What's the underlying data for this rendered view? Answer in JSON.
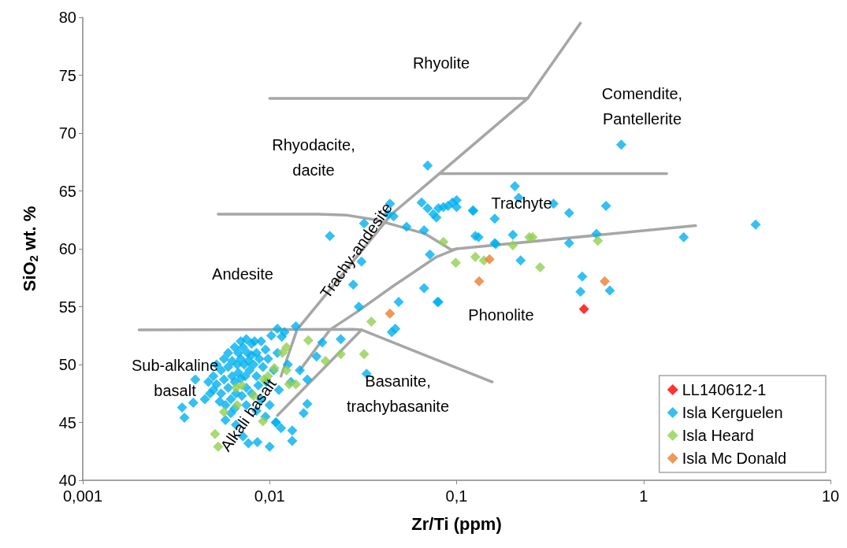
{
  "chart_data": {
    "type": "scatter",
    "xlabel": "Zr/Ti (ppm)",
    "ylabel": "SiO$_{2}$ wt. %",
    "log": "x",
    "marker": "diamond",
    "grid": false,
    "legend": "bottom right",
    "xlim": [
      0.001,
      10
    ],
    "xticks": [
      {
        "value": 0.001,
        "label": "0,001"
      },
      {
        "value": 0.01,
        "label": "0,01"
      },
      {
        "value": 0.1,
        "label": "0,1"
      },
      1,
      10
    ],
    "ylim": [
      40,
      80
    ],
    "yticks": [
      40,
      45,
      50,
      55,
      60,
      65,
      70,
      75,
      80
    ],
    "series": [
      {
        "name": "LL140612-1",
        "color": "#ff0000",
        "x": [
          0.48
        ],
        "values": [
          54.8
        ]
      },
      {
        "name": "Isla Kerguelen",
        "color": "#00b0f0",
        "x": [
          0.0045,
          0.0047,
          0.0048,
          0.005,
          0.005,
          0.0052,
          0.0052,
          0.0054,
          0.0055,
          0.0055,
          0.0057,
          0.0057,
          0.0058,
          0.006,
          0.006,
          0.006,
          0.0062,
          0.0063,
          0.0063,
          0.0065,
          0.0065,
          0.0066,
          0.0067,
          0.0068,
          0.0068,
          0.007,
          0.007,
          0.007,
          0.0071,
          0.0072,
          0.0073,
          0.0074,
          0.0075,
          0.0075,
          0.0076,
          0.0077,
          0.0078,
          0.008,
          0.008,
          0.008,
          0.0082,
          0.0083,
          0.0085,
          0.0085,
          0.0087,
          0.0088,
          0.009,
          0.009,
          0.0092,
          0.0095,
          0.0096,
          0.0098,
          0.01,
          0.0102,
          0.0105,
          0.0108,
          0.011,
          0.0112,
          0.012,
          0.0125,
          0.013,
          0.0115,
          0.0095,
          0.0085,
          0.0075,
          0.0062,
          0.0058,
          0.0066,
          0.0072,
          0.0065,
          0.0034,
          0.0035,
          0.004,
          0.0039,
          0.0077,
          0.01,
          0.0086,
          0.0132,
          0.0132,
          0.0152,
          0.0159,
          0.0108,
          0.0191,
          0.024,
          0.0178,
          0.0145,
          0.0159,
          0.011,
          0.0138,
          0.0116,
          0.021,
          0.032,
          0.044,
          0.043,
          0.046,
          0.054,
          0.067,
          0.072,
          0.067,
          0.08,
          0.049,
          0.03,
          0.047,
          0.045,
          0.031,
          0.028,
          0.033,
          0.065,
          0.07,
          0.075,
          0.08,
          0.085,
          0.09,
          0.095,
          0.1,
          0.1,
          0.078,
          0.123,
          0.126,
          0.16,
          0.76,
          3.98,
          1.64,
          0.205,
          0.215,
          0.122,
          0.16,
          0.4,
          0.63,
          0.131,
          0.162,
          0.2,
          0.4,
          0.56,
          0.22,
          0.47,
          0.46,
          0.66,
          0.079,
          0.33,
          0.07
        ],
        "values": [
          47,
          48.5,
          47.5,
          49,
          47.8,
          50,
          48.3,
          46.8,
          49.5,
          47.5,
          50.5,
          48.7,
          46.5,
          51,
          49.8,
          48,
          47,
          50.3,
          49,
          51.5,
          48.5,
          47.5,
          50,
          51,
          49.3,
          52,
          50.5,
          48.8,
          47.3,
          51.5,
          50,
          49,
          52.2,
          48,
          51,
          50.3,
          49.5,
          51.8,
          50.8,
          47.5,
          50,
          52,
          49,
          51,
          48.2,
          50.5,
          52,
          47,
          49.8,
          51.3,
          48.5,
          50.5,
          46.5,
          52.5,
          49.5,
          45,
          51,
          47.8,
          52.8,
          50,
          48.5,
          44.5,
          45.5,
          46,
          46.5,
          45.8,
          45.2,
          44.8,
          43.8,
          46.2,
          46.3,
          45.4,
          48.7,
          46.7,
          43.2,
          42.9,
          43.3,
          44.3,
          43.4,
          45.8,
          46.6,
          45,
          51.9,
          52.2,
          50.7,
          49.5,
          48.7,
          53.1,
          53.3,
          52.4,
          61.1,
          62.2,
          63.9,
          63,
          62.8,
          61.9,
          61.6,
          59.5,
          56.6,
          55.4,
          55.4,
          55,
          53.1,
          52.8,
          58.9,
          56.9,
          49.2,
          64,
          63.5,
          63,
          63.5,
          63.6,
          63.7,
          64,
          64.2,
          63.6,
          62.7,
          63.3,
          61.1,
          60.5,
          69,
          62.1,
          61,
          65.4,
          64.4,
          63.3,
          62.6,
          63.1,
          63.7,
          61,
          60.4,
          61.2,
          60.5,
          61.3,
          59,
          57.6,
          56.3,
          56.4,
          55.4,
          63.9,
          67.2
        ]
      },
      {
        "name": "Isla Heard",
        "color": "#92d050",
        "x": [
          0.085,
          0.099,
          0.126,
          0.14,
          0.2,
          0.245,
          0.255,
          0.28,
          0.57,
          0.035,
          0.032,
          0.0051,
          0.0053,
          0.0057,
          0.0066,
          0.0071,
          0.0067,
          0.0082,
          0.0092,
          0.0093,
          0.0098,
          0.0123,
          0.0117,
          0.0106,
          0.0123,
          0.0127,
          0.0138,
          0.0199,
          0.024,
          0.0161
        ],
        "values": [
          60.6,
          58.8,
          59.3,
          59,
          60.3,
          61,
          61,
          58.4,
          60.7,
          53.7,
          50.9,
          44,
          42.9,
          45.9,
          48,
          48.2,
          46.5,
          47.3,
          45.1,
          48.7,
          49,
          51.5,
          51,
          49.7,
          49.5,
          48.3,
          48.3,
          50.3,
          50.9,
          52.1
        ]
      },
      {
        "name": "Isla Mc Donald",
        "color": "#ed7d31",
        "x": [
          0.15,
          0.132,
          0.044,
          0.62
        ],
        "values": [
          59.1,
          57.2,
          54.4,
          57.2
        ]
      },
      {
        "type": "line",
        "marker": "none",
        "color": "#a6a6a6",
        "x": [
          0.01,
          0.24
        ],
        "values": [
          73,
          73
        ]
      },
      {
        "type": "line",
        "marker": "none",
        "color": "#a6a6a6",
        "x": [
          0.46,
          0.24,
          0.081,
          0.045,
          0.014,
          0.0115
        ],
        "values": [
          79.5,
          73,
          66.5,
          63,
          53,
          49
        ]
      },
      {
        "type": "line",
        "marker": "none",
        "color": "#a6a6a6",
        "x": [
          0.081,
          1.33
        ],
        "values": [
          66.5,
          66.5
        ]
      },
      {
        "type": "line",
        "marker": "none",
        "color": "#a6a6a6",
        "x": [
          0.0053,
          0.018,
          0.026,
          0.037,
          0.068,
          0.094,
          0.1,
          1.9
        ],
        "values": [
          63,
          63,
          62.9,
          62.5,
          61.3,
          59.9,
          60,
          62
        ]
      },
      {
        "type": "line",
        "marker": "none",
        "color": "#a6a6a6",
        "x": [
          0.1,
          0.078,
          0.046,
          0.029,
          0.021,
          0.0145
        ],
        "values": [
          60,
          59.3,
          56.8,
          54.5,
          53,
          49.5
        ]
      },
      {
        "type": "line",
        "marker": "none",
        "color": "#a6a6a6",
        "x": [
          0.002,
          0.028,
          0.031,
          0.155
        ],
        "values": [
          53,
          53.05,
          53,
          48.5
        ]
      },
      {
        "type": "line",
        "marker": "none",
        "color": "#a6a6a6",
        "x": [
          0.031,
          0.011
        ],
        "values": [
          53,
          45.6
        ]
      }
    ],
    "annotations": [
      "Rhyolite",
      "Comendite,\nPantellerite",
      "Rhyodacite,\ndacite",
      "Trachyte",
      "Andesite",
      "Trachy-andesite",
      "Phonolite",
      "Sub-alkaline\nbasalt",
      "Alkali basalt",
      "Basanite,\ntrachybasanite"
    ]
  }
}
